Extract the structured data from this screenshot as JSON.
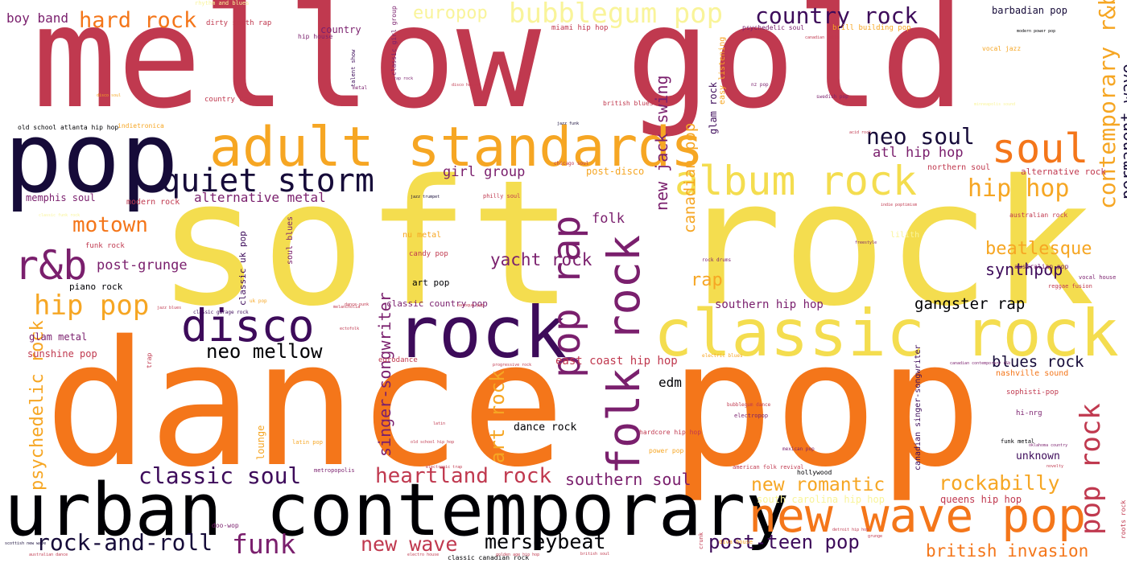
{
  "colors": {
    "crimson": "#c0394f",
    "orange": "#f4761a",
    "amber": "#f6a623",
    "yellow": "#f4dd4f",
    "paleYellow": "#f9f49a",
    "purple": "#7a1f6d",
    "deepPurple": "#3d0b5a",
    "navy": "#160b39",
    "black": "#000004"
  },
  "words": [
    {
      "text": "mellow gold",
      "rank": 1
    },
    {
      "text": "soft rock",
      "rank": 2
    },
    {
      "text": "dance pop",
      "rank": 3
    },
    {
      "text": "pop",
      "rank": 4
    },
    {
      "text": "urban contemporary",
      "rank": 5
    },
    {
      "text": "adult standards",
      "rank": 6
    },
    {
      "text": "classic rock",
      "rank": 7
    },
    {
      "text": "rock",
      "rank": 8
    },
    {
      "text": "new wave pop",
      "rank": 9
    },
    {
      "text": "album rock",
      "rank": 10
    },
    {
      "text": "disco",
      "rank": 11
    },
    {
      "text": "soul",
      "rank": 12
    },
    {
      "text": "r&b",
      "rank": 13
    },
    {
      "text": "quiet storm",
      "rank": 14
    },
    {
      "text": "folk rock",
      "rank": 15
    },
    {
      "text": "pop rap",
      "rank": 16
    },
    {
      "text": "bubblegum pop",
      "rank": 17
    },
    {
      "text": "country rock",
      "rank": 18
    },
    {
      "text": "hip pop",
      "rank": 19
    },
    {
      "text": "contemporary r&b",
      "rank": 20
    },
    {
      "text": "funk",
      "rank": 21
    },
    {
      "text": "hip hop",
      "rank": 22
    },
    {
      "text": "pop rock",
      "rank": 23
    },
    {
      "text": "hard rock",
      "rank": 24
    },
    {
      "text": "neo soul",
      "rank": 25
    },
    {
      "text": "motown",
      "rank": 26
    },
    {
      "text": "classic soul",
      "rank": 27
    },
    {
      "text": "rock-and-roll",
      "rank": 28
    },
    {
      "text": "neo mellow",
      "rank": 29
    },
    {
      "text": "new wave",
      "rank": 30
    },
    {
      "text": "merseybeat",
      "rank": 31
    },
    {
      "text": "heartland rock",
      "rank": 32
    },
    {
      "text": "post-teen pop",
      "rank": 33
    },
    {
      "text": "new romantic",
      "rank": 34
    },
    {
      "text": "rockabilly",
      "rank": 35
    },
    {
      "text": "british invasion",
      "rank": 36
    },
    {
      "text": "yacht rock",
      "rank": 37
    },
    {
      "text": "psychedelic rock",
      "rank": 38
    },
    {
      "text": "singer-songwriter",
      "rank": 39
    },
    {
      "text": "canadian pop",
      "rank": 40
    },
    {
      "text": "new jack swing",
      "rank": 41
    },
    {
      "text": "europop",
      "rank": 42
    },
    {
      "text": "beatlesque",
      "rank": 43
    },
    {
      "text": "art rock",
      "rank": 44
    },
    {
      "text": "permanent wave",
      "rank": 45
    },
    {
      "text": "southern soul",
      "rank": 46
    },
    {
      "text": "synthpop",
      "rank": 47
    },
    {
      "text": "gangster rap",
      "rank": 48
    },
    {
      "text": "atl hip hop",
      "rank": 49
    },
    {
      "text": "post-grunge",
      "rank": 50
    },
    {
      "text": "alternative metal",
      "rank": 51
    },
    {
      "text": "girl group",
      "rank": 52
    },
    {
      "text": "rap",
      "rank": 53
    },
    {
      "text": "blues rock",
      "rank": 54
    },
    {
      "text": "folk",
      "rank": 55
    },
    {
      "text": "southern hip hop",
      "rank": 56
    },
    {
      "text": "east coast hip hop",
      "rank": 57
    },
    {
      "text": "boy band",
      "rank": 58
    },
    {
      "text": "edm",
      "rank": 59
    },
    {
      "text": "dance rock",
      "rank": 60
    },
    {
      "text": "unknown",
      "rank": 61
    },
    {
      "text": "memphis soul",
      "rank": 62
    },
    {
      "text": "glam metal",
      "rank": 63
    },
    {
      "text": "sunshine pop",
      "rank": 64
    },
    {
      "text": "post-disco",
      "rank": 65
    },
    {
      "text": "country",
      "rank": 66
    },
    {
      "text": "classic country pop",
      "rank": 67
    },
    {
      "text": "south carolina hip hop",
      "rank": 68
    },
    {
      "text": "queens hip hop",
      "rank": 69
    },
    {
      "text": "nashville sound",
      "rank": 70
    },
    {
      "text": "canadian singer-songwriter",
      "rank": 71
    },
    {
      "text": "lounge",
      "rank": 72
    },
    {
      "text": "barbadian pop",
      "rank": 73
    },
    {
      "text": "piano rock",
      "rank": 74
    },
    {
      "text": "modern rock",
      "rank": 75
    },
    {
      "text": "alternative rock",
      "rank": 76
    },
    {
      "text": "northern soul",
      "rank": 77
    },
    {
      "text": "art pop",
      "rank": 78
    },
    {
      "text": "nu metal",
      "rank": 79
    },
    {
      "text": "candy pop",
      "rank": 80
    },
    {
      "text": "lilith",
      "rank": 81
    },
    {
      "text": "glam rock",
      "rank": 82
    },
    {
      "text": "easy listening",
      "rank": 83
    },
    {
      "text": "classic uk pop",
      "rank": 84
    },
    {
      "text": "soul blues",
      "rank": 85
    },
    {
      "text": "eurodance",
      "rank": 86
    },
    {
      "text": "sophisti-pop",
      "rank": 87
    },
    {
      "text": "hi-nrg",
      "rank": 88
    },
    {
      "text": "funk rock",
      "rank": 89
    },
    {
      "text": "country dawn",
      "rank": 90
    },
    {
      "text": "indietronica",
      "rank": 91
    },
    {
      "text": "old school atlanta hip hop",
      "rank": 92
    },
    {
      "text": "dirty south rap",
      "rank": 93
    },
    {
      "text": "rhythm and blues",
      "rank": 94
    },
    {
      "text": "hip house",
      "rank": 95
    },
    {
      "text": "classic girl group",
      "rank": 96
    },
    {
      "text": "miami hip hop",
      "rank": 97
    },
    {
      "text": "psychedelic soul",
      "rank": 98
    },
    {
      "text": "brill building pop",
      "rank": 99
    },
    {
      "text": "vocal jazz",
      "rank": 100
    },
    {
      "text": "talent show",
      "rank": 101
    },
    {
      "text": "british blues",
      "rank": 102
    },
    {
      "text": "chicago soul",
      "rank": 103
    },
    {
      "text": "philly soul",
      "rank": 104
    },
    {
      "text": "australian rock",
      "rank": 105
    },
    {
      "text": "australian pop",
      "rank": 106
    },
    {
      "text": "vocal house",
      "rank": 107
    },
    {
      "text": "reggae fusion",
      "rank": 108
    },
    {
      "text": "classic canadian rock",
      "rank": 109
    },
    {
      "text": "hardcore hip hop",
      "rank": 110
    },
    {
      "text": "power pop",
      "rank": 111
    },
    {
      "text": "american folk revival",
      "rank": 112
    },
    {
      "text": "electropop",
      "rank": 113
    },
    {
      "text": "bubblegum dance",
      "rank": 114
    },
    {
      "text": "mexican pop",
      "rank": 115
    },
    {
      "text": "hollywood",
      "rank": 116
    },
    {
      "text": "funk metal",
      "rank": 117
    },
    {
      "text": "trap",
      "rank": 118
    },
    {
      "text": "classic garage rock",
      "rank": 119
    },
    {
      "text": "latin pop",
      "rank": 120
    },
    {
      "text": "metropopolis",
      "rank": 121
    },
    {
      "text": "doo-wop",
      "rank": 122
    },
    {
      "text": "diva house",
      "rank": 123
    },
    {
      "text": "roots rock",
      "rank": 124
    },
    {
      "text": "crunk",
      "rank": 125
    },
    {
      "text": "electric blues",
      "rank": 126
    },
    {
      "text": "rock drums",
      "rank": 127
    },
    {
      "text": "swedish pop",
      "rank": 128
    },
    {
      "text": "nz pop",
      "rank": 129
    },
    {
      "text": "modern power pop",
      "rank": 130
    },
    {
      "text": "acid rock",
      "rank": 131
    },
    {
      "text": "jazz funk",
      "rank": 132
    },
    {
      "text": "metal",
      "rank": 133
    },
    {
      "text": "rap rock",
      "rank": 134
    },
    {
      "text": "disco house",
      "rank": 135
    },
    {
      "text": "jazz trumpet",
      "rank": 136
    },
    {
      "text": "uk pop",
      "rank": 137
    },
    {
      "text": "jazz blues",
      "rank": 138
    },
    {
      "text": "baroque pop",
      "rank": 139
    },
    {
      "text": "progressive rock",
      "rank": 140
    },
    {
      "text": "scottish new wave",
      "rank": 141
    },
    {
      "text": "australian dance",
      "rank": 142
    },
    {
      "text": "golden age hip hop",
      "rank": 143
    },
    {
      "text": "electro house",
      "rank": 144
    },
    {
      "text": "detroit hip hop",
      "rank": 145
    },
    {
      "text": "british soul",
      "rank": 146
    },
    {
      "text": "grunge",
      "rank": 147
    },
    {
      "text": "oklahoma country",
      "rank": 148
    },
    {
      "text": "canadian contemporary r&b",
      "rank": 149
    },
    {
      "text": "novelty",
      "rank": 150
    },
    {
      "text": "freestyle",
      "rank": 151
    },
    {
      "text": "indie poptimism",
      "rank": 152
    },
    {
      "text": "old school hip hop",
      "rank": 153
    },
    {
      "text": "electronic trap",
      "rank": 154
    },
    {
      "text": "disco soul",
      "rank": 155
    },
    {
      "text": "classic funk rock",
      "rank": 156
    },
    {
      "text": "dance-punk",
      "rank": 157
    },
    {
      "text": "latin",
      "rank": 158
    },
    {
      "text": "melancholia",
      "rank": 159
    },
    {
      "text": "ectofolk",
      "rank": 160
    },
    {
      "text": "minneapolis sound",
      "rank": 161
    },
    {
      "text": "canadian latin",
      "rank": 162
    },
    {
      "text": "south african rock",
      "rank": 163
    },
    {
      "text": "country pop",
      "rank": 164
    }
  ]
}
